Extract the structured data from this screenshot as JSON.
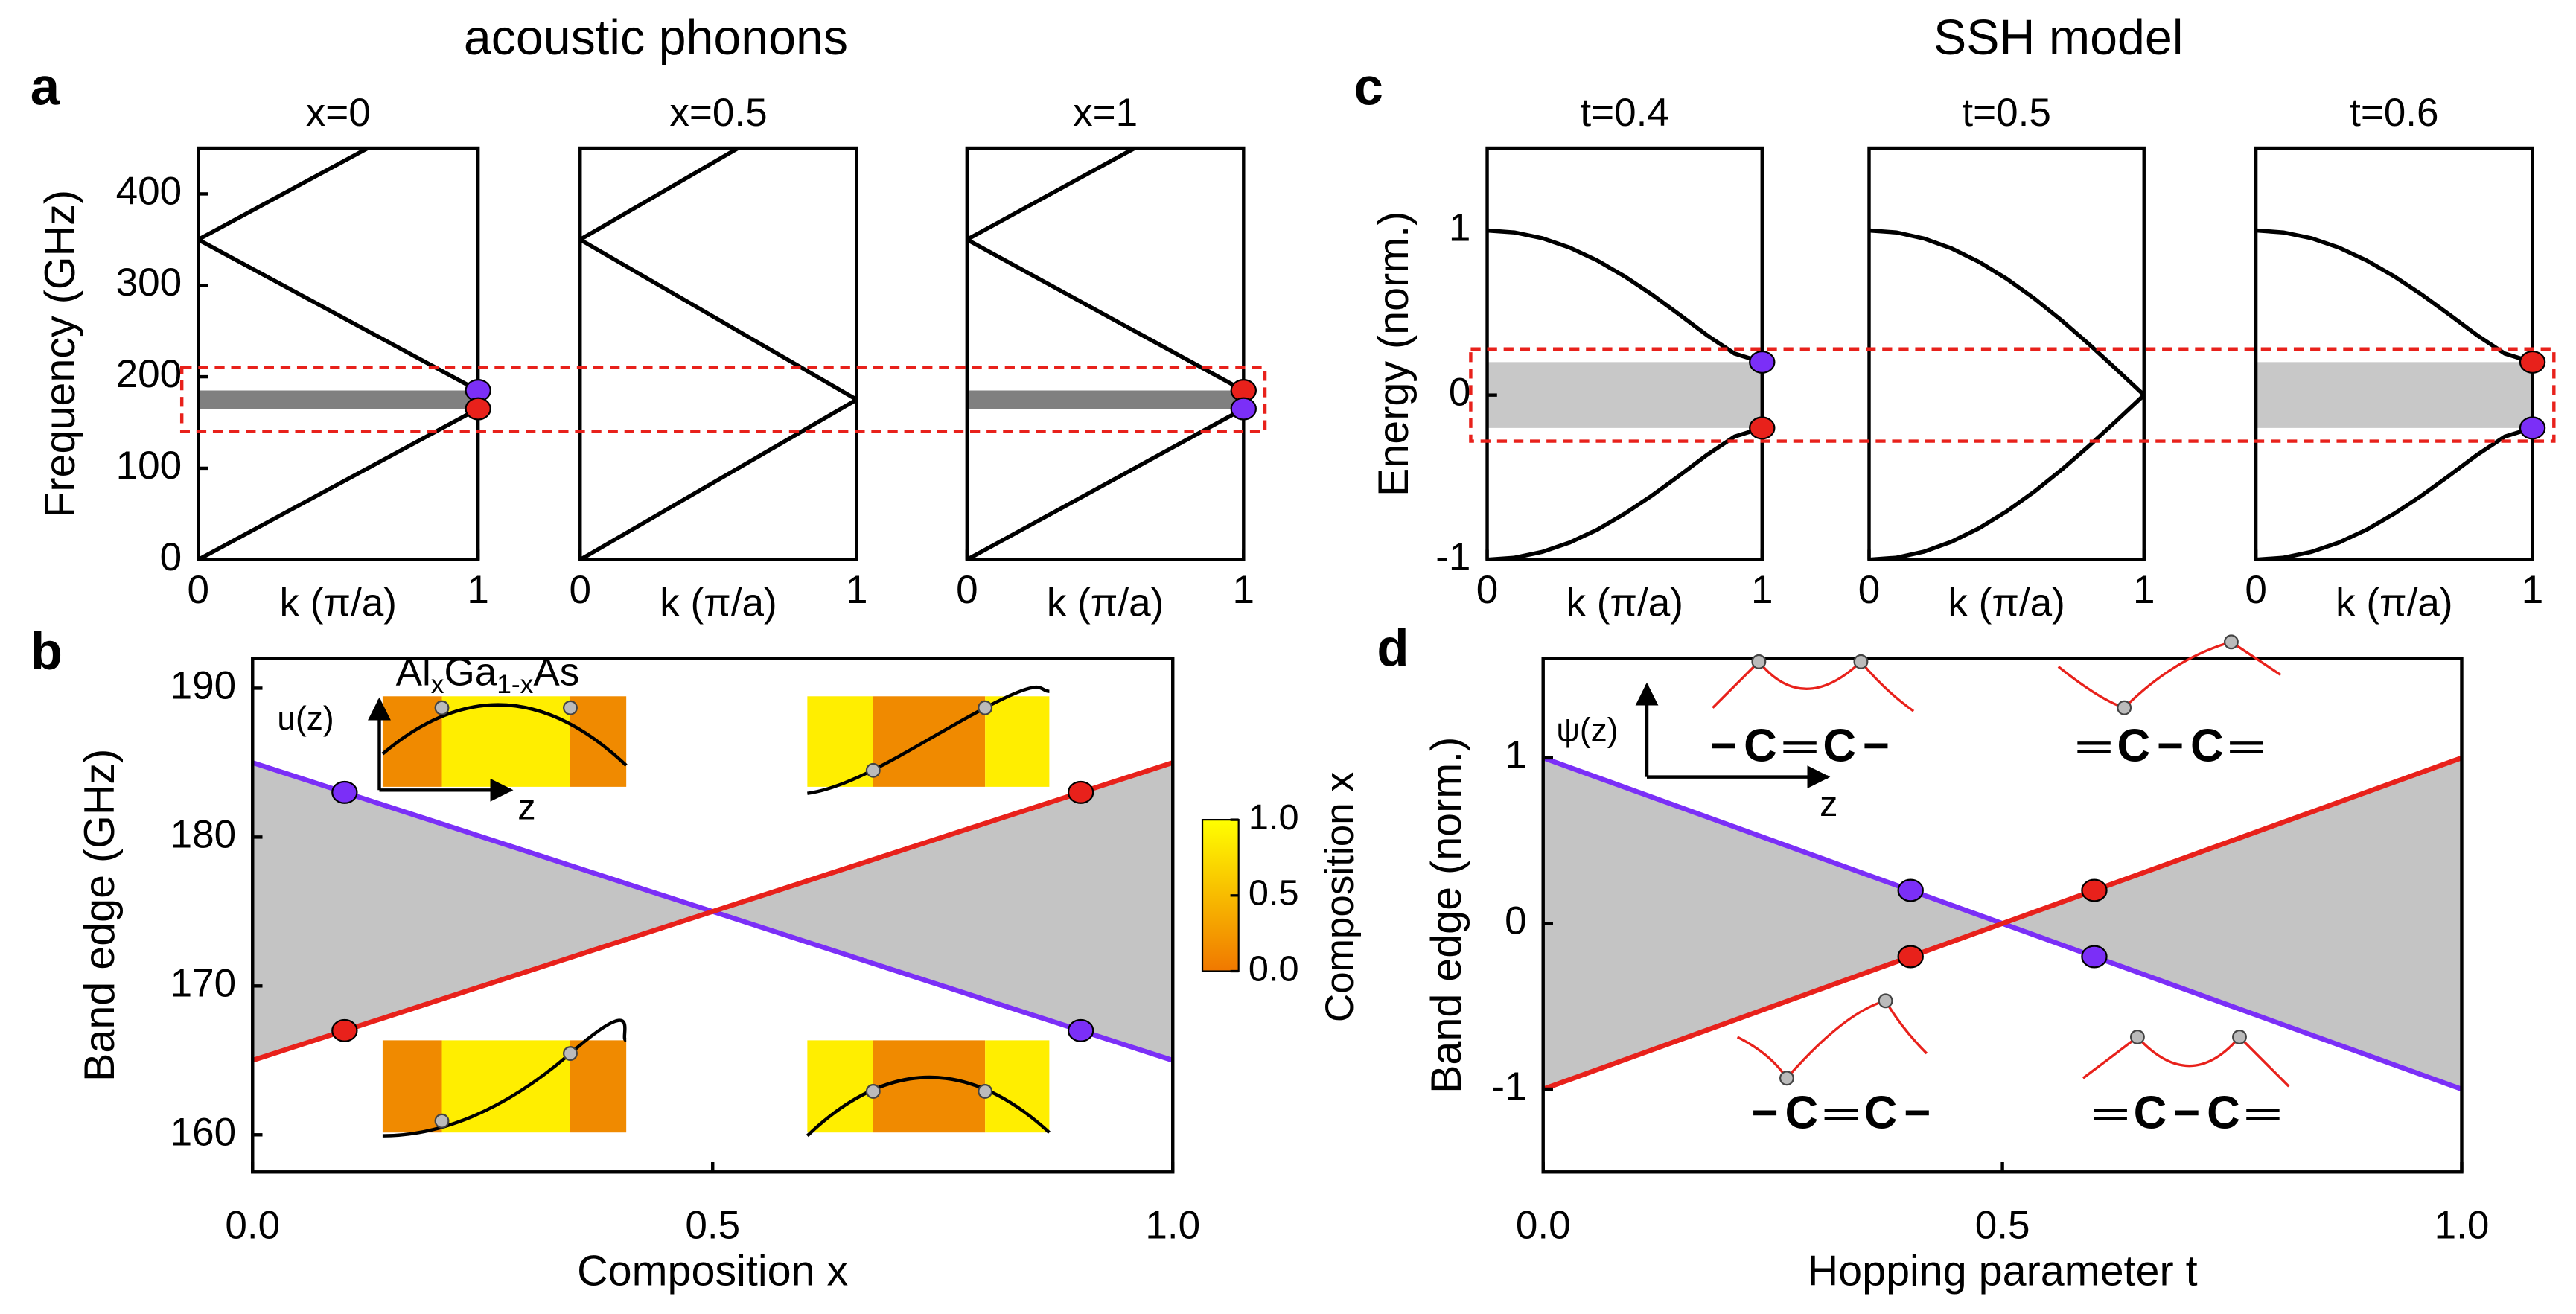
{
  "headings": [
    "acoustic phonons",
    "SSH model"
  ],
  "panel_labels": [
    "a",
    "b",
    "c",
    "d"
  ],
  "chart_data": [
    {
      "type": "line",
      "title": "x=0",
      "xlabel": "k (π/a)",
      "ylabel": "Frequency (GHz)",
      "xlim": [
        0,
        1
      ],
      "xticks": [
        0,
        1
      ],
      "ylim": [
        0,
        450
      ],
      "yticks": [
        0,
        100,
        200,
        300,
        400
      ],
      "highlight_ylim": [
        140,
        210
      ],
      "bands": [
        {
          "color": "#808080",
          "x": [
            0,
            1
          ],
          "low": [
            165,
            165
          ],
          "high": [
            185,
            185
          ]
        }
      ],
      "series": [
        {
          "color": "#000000",
          "x": [
            0,
            1
          ],
          "values": [
            0,
            165
          ]
        },
        {
          "color": "#000000",
          "x": [
            0,
            1
          ],
          "values": [
            350,
            185
          ]
        },
        {
          "color": "#000000",
          "x": [
            0,
            0.606
          ],
          "values": [
            350,
            450
          ]
        }
      ],
      "points": [
        {
          "color": "#7b2ff7",
          "x": [
            1
          ],
          "values": [
            185
          ]
        },
        {
          "color": "#e8211b",
          "x": [
            1
          ],
          "values": [
            165
          ]
        }
      ]
    },
    {
      "type": "line",
      "title": "x=0.5",
      "xlabel": "k (π/a)",
      "xlim": [
        0,
        1
      ],
      "xticks": [
        0,
        1
      ],
      "ylim": [
        0,
        450
      ],
      "series": [
        {
          "color": "#000000",
          "x": [
            0,
            1
          ],
          "values": [
            0,
            175
          ]
        },
        {
          "color": "#000000",
          "x": [
            0,
            1
          ],
          "values": [
            350,
            175
          ]
        },
        {
          "color": "#000000",
          "x": [
            0,
            0.571
          ],
          "values": [
            350,
            450
          ]
        }
      ]
    },
    {
      "type": "line",
      "title": "x=1",
      "xlabel": "k (π/a)",
      "xlim": [
        0,
        1
      ],
      "xticks": [
        0,
        1
      ],
      "ylim": [
        0,
        450
      ],
      "bands": [
        {
          "color": "#808080",
          "x": [
            0,
            1
          ],
          "low": [
            165,
            165
          ],
          "high": [
            185,
            185
          ]
        }
      ],
      "series": [
        {
          "color": "#000000",
          "x": [
            0,
            1
          ],
          "values": [
            0,
            165
          ]
        },
        {
          "color": "#000000",
          "x": [
            0,
            1
          ],
          "values": [
            350,
            185
          ]
        },
        {
          "color": "#000000",
          "x": [
            0,
            0.606
          ],
          "values": [
            350,
            450
          ]
        }
      ],
      "points": [
        {
          "color": "#e8211b",
          "x": [
            1
          ],
          "values": [
            185
          ]
        },
        {
          "color": "#7b2ff7",
          "x": [
            1
          ],
          "values": [
            165
          ]
        }
      ]
    },
    {
      "type": "line",
      "xlabel": "Composition x",
      "ylabel": "Band edge (GHz)",
      "xlim": [
        0,
        1
      ],
      "xticks": [
        {
          "value": 0,
          "label": "0.0"
        },
        {
          "value": 0.5,
          "label": "0.5"
        },
        {
          "value": 1,
          "label": "1.0"
        }
      ],
      "ylim": [
        157.5,
        192
      ],
      "yticks": [
        160,
        170,
        180,
        190
      ],
      "bands": [
        {
          "color": "#c4c4c4",
          "x": [
            0,
            0.5,
            1
          ],
          "low": [
            165,
            175,
            165
          ],
          "high": [
            185,
            175,
            185
          ]
        }
      ],
      "series": [
        {
          "color": "#7b2ff7",
          "x": [
            0,
            1
          ],
          "values": [
            185,
            165
          ]
        },
        {
          "color": "#e8211b",
          "x": [
            0,
            1
          ],
          "values": [
            165,
            185
          ]
        }
      ],
      "points": [
        {
          "color": "#7b2ff7",
          "x": [
            0.1,
            0.9
          ],
          "values": [
            183,
            167
          ]
        },
        {
          "color": "#e8211b",
          "x": [
            0.1,
            0.9
          ],
          "values": [
            167,
            183
          ]
        }
      ],
      "colorbar": {
        "label": "Composition x",
        "lim": [
          0,
          1
        ],
        "colors": [
          "#f07800",
          "#ffff00"
        ],
        "ticks": [
          {
            "value": 0,
            "label": "0.0"
          },
          {
            "value": 0.5,
            "label": "0.5"
          },
          {
            "value": 1,
            "label": "1.0"
          }
        ]
      },
      "inset_label": [
        "Al",
        "x",
        "Ga",
        "1-x",
        "As"
      ],
      "inset_axis_labels": [
        "u(z)",
        "z"
      ]
    },
    {
      "type": "line",
      "title": "t=0.4",
      "xlabel": "k (π/a)",
      "ylabel": "Energy (norm.)",
      "xlim": [
        0,
        1
      ],
      "xticks": [
        0,
        1
      ],
      "ylim": [
        -1,
        1.5
      ],
      "yticks": [
        -1,
        0,
        1
      ],
      "highlight_ylim": [
        -0.28,
        0.28
      ],
      "bands": [
        {
          "color": "#c8c8c8",
          "x": [
            0,
            1
          ],
          "low": [
            -0.2,
            -0.2
          ],
          "high": [
            0.2,
            0.2
          ]
        }
      ],
      "series": [
        {
          "color": "#000000",
          "x": [
            0,
            0.1,
            0.2,
            0.3,
            0.4,
            0.5,
            0.6,
            0.7,
            0.8,
            0.9,
            1
          ],
          "values": [
            1,
            0.988,
            0.953,
            0.896,
            0.818,
            0.721,
            0.61,
            0.488,
            0.363,
            0.252,
            0.2
          ]
        },
        {
          "color": "#000000",
          "x": [
            0,
            0.1,
            0.2,
            0.3,
            0.4,
            0.5,
            0.6,
            0.7,
            0.8,
            0.9,
            1
          ],
          "values": [
            -1,
            -0.988,
            -0.953,
            -0.896,
            -0.818,
            -0.721,
            -0.61,
            -0.488,
            -0.363,
            -0.252,
            -0.2
          ]
        }
      ],
      "points": [
        {
          "color": "#7b2ff7",
          "x": [
            1
          ],
          "values": [
            0.2
          ]
        },
        {
          "color": "#e8211b",
          "x": [
            1
          ],
          "values": [
            -0.2
          ]
        }
      ]
    },
    {
      "type": "line",
      "title": "t=0.5",
      "xlabel": "k (π/a)",
      "xlim": [
        0,
        1
      ],
      "xticks": [
        0,
        1
      ],
      "ylim": [
        -1,
        1.5
      ],
      "series": [
        {
          "color": "#000000",
          "x": [
            0,
            0.1,
            0.2,
            0.3,
            0.4,
            0.5,
            0.6,
            0.7,
            0.8,
            0.9,
            1
          ],
          "values": [
            1,
            0.988,
            0.951,
            0.891,
            0.809,
            0.707,
            0.588,
            0.454,
            0.309,
            0.156,
            0
          ]
        },
        {
          "color": "#000000",
          "x": [
            0,
            0.1,
            0.2,
            0.3,
            0.4,
            0.5,
            0.6,
            0.7,
            0.8,
            0.9,
            1
          ],
          "values": [
            -1,
            -0.988,
            -0.951,
            -0.891,
            -0.809,
            -0.707,
            -0.588,
            -0.454,
            -0.309,
            -0.156,
            0
          ]
        }
      ]
    },
    {
      "type": "line",
      "title": "t=0.6",
      "xlabel": "k (π/a)",
      "xlim": [
        0,
        1
      ],
      "xticks": [
        0,
        1
      ],
      "ylim": [
        -1,
        1.5
      ],
      "bands": [
        {
          "color": "#c8c8c8",
          "x": [
            0,
            1
          ],
          "low": [
            -0.2,
            -0.2
          ],
          "high": [
            0.2,
            0.2
          ]
        }
      ],
      "series": [
        {
          "color": "#000000",
          "x": [
            0,
            0.1,
            0.2,
            0.3,
            0.4,
            0.5,
            0.6,
            0.7,
            0.8,
            0.9,
            1
          ],
          "values": [
            1,
            0.988,
            0.953,
            0.896,
            0.818,
            0.721,
            0.61,
            0.488,
            0.363,
            0.252,
            0.2
          ]
        },
        {
          "color": "#000000",
          "x": [
            0,
            0.1,
            0.2,
            0.3,
            0.4,
            0.5,
            0.6,
            0.7,
            0.8,
            0.9,
            1
          ],
          "values": [
            -1,
            -0.988,
            -0.953,
            -0.896,
            -0.818,
            -0.721,
            -0.61,
            -0.488,
            -0.363,
            -0.252,
            -0.2
          ]
        }
      ],
      "points": [
        {
          "color": "#e8211b",
          "x": [
            1
          ],
          "values": [
            0.2
          ]
        },
        {
          "color": "#7b2ff7",
          "x": [
            1
          ],
          "values": [
            -0.2
          ]
        }
      ]
    },
    {
      "type": "line",
      "xlabel": "Hopping parameter t",
      "ylabel": "Band edge (norm.)",
      "xlim": [
        0,
        1
      ],
      "xticks": [
        {
          "value": 0,
          "label": "0.0"
        },
        {
          "value": 0.5,
          "label": "0.5"
        },
        {
          "value": 1,
          "label": "1.0"
        }
      ],
      "ylim": [
        -1.5,
        1.6
      ],
      "yticks": [
        -1,
        0,
        1
      ],
      "bands": [
        {
          "color": "#c4c4c4",
          "x": [
            0,
            0.5,
            1
          ],
          "low": [
            -1,
            0,
            -1
          ],
          "high": [
            1,
            0,
            1
          ]
        }
      ],
      "series": [
        {
          "color": "#7b2ff7",
          "x": [
            0,
            1
          ],
          "values": [
            1,
            -1
          ]
        },
        {
          "color": "#e8211b",
          "x": [
            0,
            1
          ],
          "values": [
            -1,
            1
          ]
        }
      ],
      "points": [
        {
          "color": "#7b2ff7",
          "x": [
            0.4,
            0.6
          ],
          "values": [
            0.2,
            -0.2
          ]
        },
        {
          "color": "#e8211b",
          "x": [
            0.4,
            0.6
          ],
          "values": [
            -0.2,
            0.2
          ]
        }
      ],
      "annotations": [
        "−C═C−",
        "═C−C═",
        "−C═C−",
        "═C−C═"
      ],
      "inset_axis_labels": [
        "ψ(z)",
        "z"
      ]
    }
  ]
}
